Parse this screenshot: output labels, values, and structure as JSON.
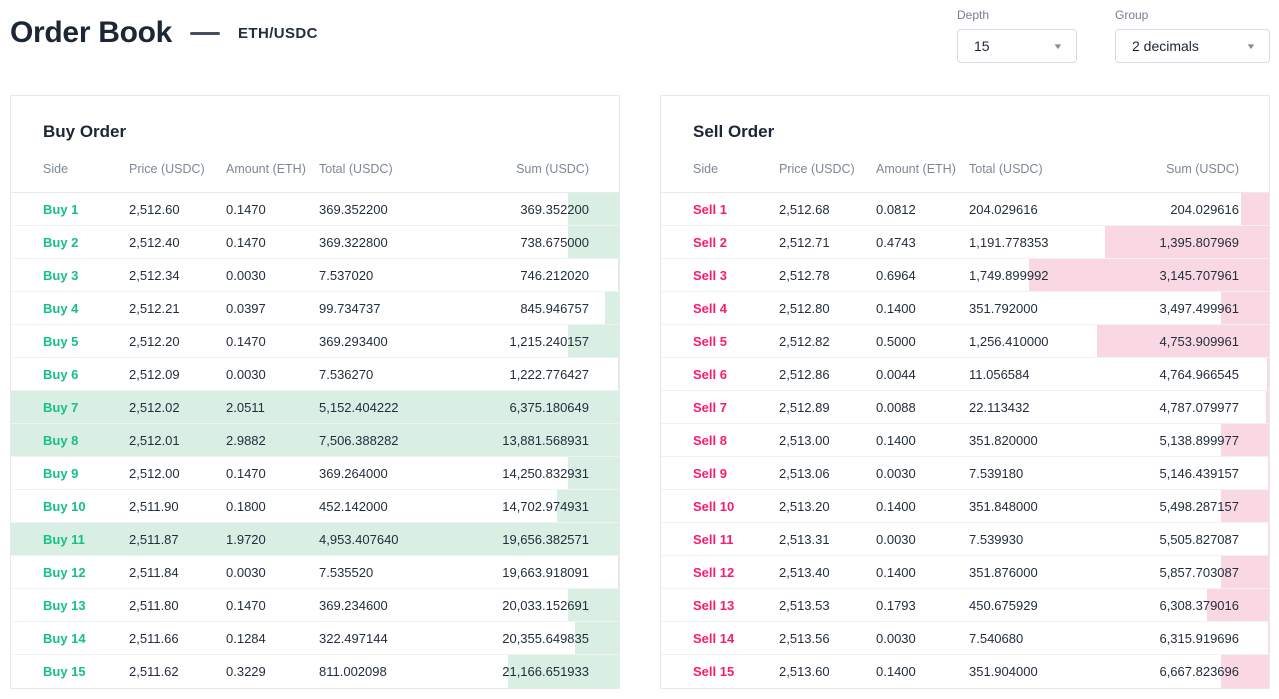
{
  "header": {
    "title": "Order Book",
    "pair": "ETH/USDC"
  },
  "controls": {
    "depth": {
      "label": "Depth",
      "value": "15"
    },
    "group": {
      "label": "Group",
      "value": "2 decimals"
    }
  },
  "columns": [
    "Side",
    "Price (USDC)",
    "Amount (ETH)",
    "Total (USDC)",
    "Sum (USDC)"
  ],
  "colors": {
    "buy": "#15c184",
    "buy_bg": "#d9efe3",
    "sell": "#f81c70",
    "sell_bg": "#fad8e3"
  },
  "buy_panel": {
    "title": "Buy Order",
    "rows": [
      {
        "side": "Buy 1",
        "price": "2,512.60",
        "amount": "0.1470",
        "total": "369.352200",
        "sum": "369.352200"
      },
      {
        "side": "Buy 2",
        "price": "2,512.40",
        "amount": "0.1470",
        "total": "369.322800",
        "sum": "738.675000"
      },
      {
        "side": "Buy 3",
        "price": "2,512.34",
        "amount": "0.0030",
        "total": "7.537020",
        "sum": "746.212020"
      },
      {
        "side": "Buy 4",
        "price": "2,512.21",
        "amount": "0.0397",
        "total": "99.734737",
        "sum": "845.946757"
      },
      {
        "side": "Buy 5",
        "price": "2,512.20",
        "amount": "0.1470",
        "total": "369.293400",
        "sum": "1,215.240157"
      },
      {
        "side": "Buy 6",
        "price": "2,512.09",
        "amount": "0.0030",
        "total": "7.536270",
        "sum": "1,222.776427"
      },
      {
        "side": "Buy 7",
        "price": "2,512.02",
        "amount": "2.0511",
        "total": "5,152.404222",
        "sum": "6,375.180649"
      },
      {
        "side": "Buy 8",
        "price": "2,512.01",
        "amount": "2.9882",
        "total": "7,506.388282",
        "sum": "13,881.568931"
      },
      {
        "side": "Buy 9",
        "price": "2,512.00",
        "amount": "0.1470",
        "total": "369.264000",
        "sum": "14,250.832931"
      },
      {
        "side": "Buy 10",
        "price": "2,511.90",
        "amount": "0.1800",
        "total": "452.142000",
        "sum": "14,702.974931"
      },
      {
        "side": "Buy 11",
        "price": "2,511.87",
        "amount": "1.9720",
        "total": "4,953.407640",
        "sum": "19,656.382571"
      },
      {
        "side": "Buy 12",
        "price": "2,511.84",
        "amount": "0.0030",
        "total": "7.535520",
        "sum": "19,663.918091"
      },
      {
        "side": "Buy 13",
        "price": "2,511.80",
        "amount": "0.1470",
        "total": "369.234600",
        "sum": "20,033.152691"
      },
      {
        "side": "Buy 14",
        "price": "2,511.66",
        "amount": "0.1284",
        "total": "322.497144",
        "sum": "20,355.649835"
      },
      {
        "side": "Buy 15",
        "price": "2,511.62",
        "amount": "0.3229",
        "total": "811.002098",
        "sum": "21,166.651933"
      }
    ]
  },
  "sell_panel": {
    "title": "Sell Order",
    "rows": [
      {
        "side": "Sell 1",
        "price": "2,512.68",
        "amount": "0.0812",
        "total": "204.029616",
        "sum": "204.029616"
      },
      {
        "side": "Sell 2",
        "price": "2,512.71",
        "amount": "0.4743",
        "total": "1,191.778353",
        "sum": "1,395.807969"
      },
      {
        "side": "Sell 3",
        "price": "2,512.78",
        "amount": "0.6964",
        "total": "1,749.899992",
        "sum": "3,145.707961"
      },
      {
        "side": "Sell 4",
        "price": "2,512.80",
        "amount": "0.1400",
        "total": "351.792000",
        "sum": "3,497.499961"
      },
      {
        "side": "Sell 5",
        "price": "2,512.82",
        "amount": "0.5000",
        "total": "1,256.410000",
        "sum": "4,753.909961"
      },
      {
        "side": "Sell 6",
        "price": "2,512.86",
        "amount": "0.0044",
        "total": "11.056584",
        "sum": "4,764.966545"
      },
      {
        "side": "Sell 7",
        "price": "2,512.89",
        "amount": "0.0088",
        "total": "22.113432",
        "sum": "4,787.079977"
      },
      {
        "side": "Sell 8",
        "price": "2,513.00",
        "amount": "0.1400",
        "total": "351.820000",
        "sum": "5,138.899977"
      },
      {
        "side": "Sell 9",
        "price": "2,513.06",
        "amount": "0.0030",
        "total": "7.539180",
        "sum": "5,146.439157"
      },
      {
        "side": "Sell 10",
        "price": "2,513.20",
        "amount": "0.1400",
        "total": "351.848000",
        "sum": "5,498.287157"
      },
      {
        "side": "Sell 11",
        "price": "2,513.31",
        "amount": "0.0030",
        "total": "7.539930",
        "sum": "5,505.827087"
      },
      {
        "side": "Sell 12",
        "price": "2,513.40",
        "amount": "0.1400",
        "total": "351.876000",
        "sum": "5,857.703087"
      },
      {
        "side": "Sell 13",
        "price": "2,513.53",
        "amount": "0.1793",
        "total": "450.675929",
        "sum": "6,308.379016"
      },
      {
        "side": "Sell 14",
        "price": "2,513.56",
        "amount": "0.0030",
        "total": "7.540680",
        "sum": "6,315.919696"
      },
      {
        "side": "Sell 15",
        "price": "2,513.60",
        "amount": "0.1400",
        "total": "351.904000",
        "sum": "6,667.823696"
      }
    ]
  }
}
